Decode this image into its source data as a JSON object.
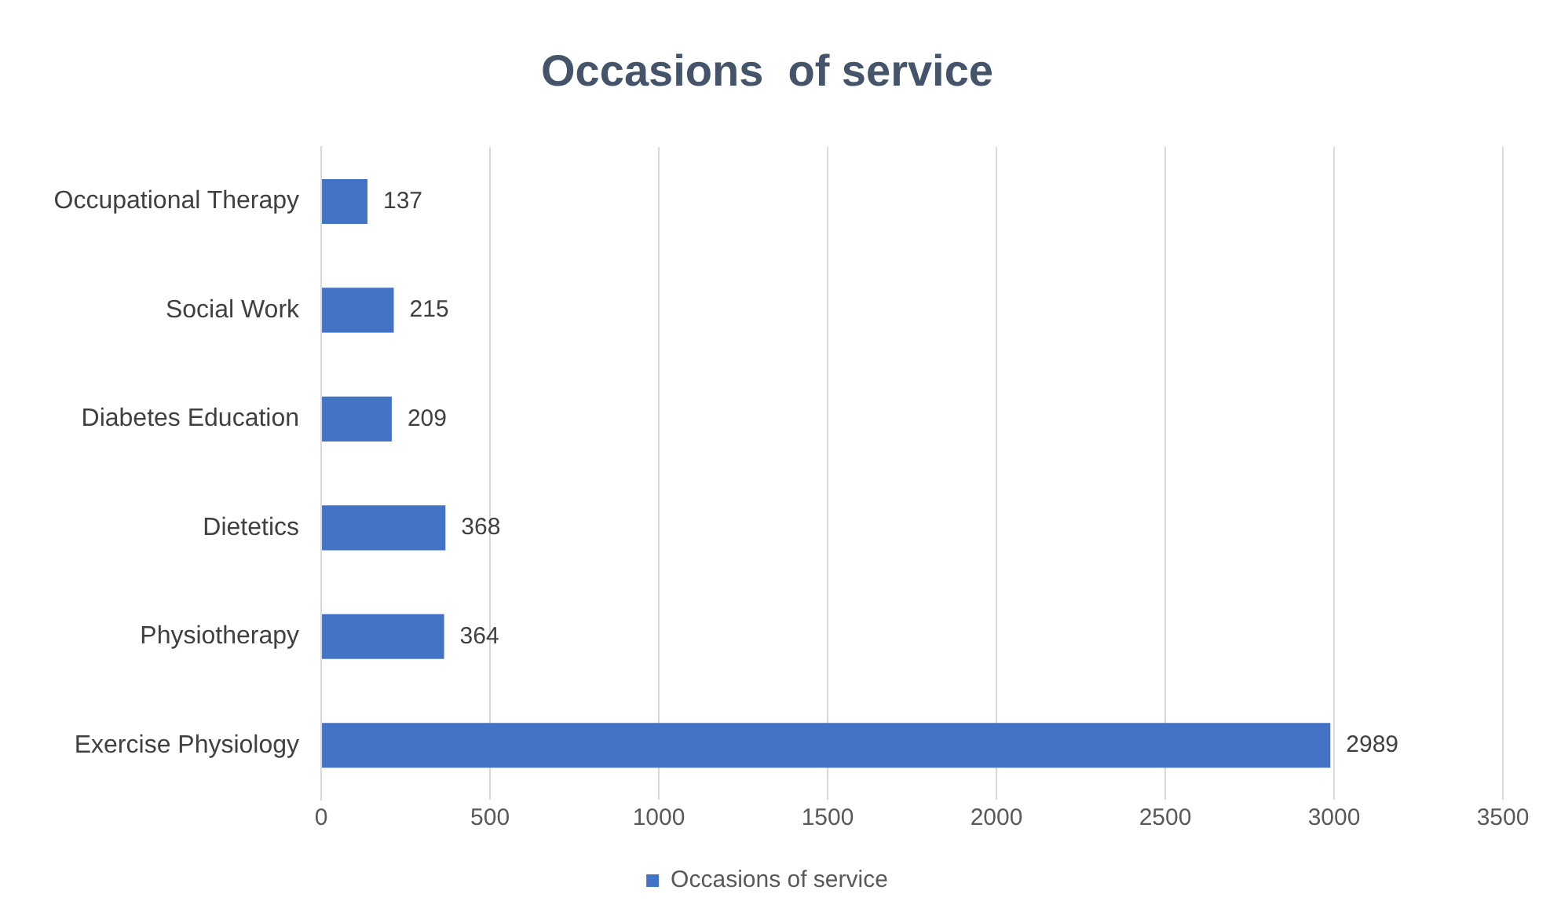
{
  "chart_data": {
    "type": "bar",
    "orientation": "horizontal",
    "title": "Occasions  of service",
    "categories": [
      "Occupational Therapy",
      "Social Work",
      "Diabetes Education",
      "Dietetics",
      "Physiotherapy",
      "Exercise Physiology"
    ],
    "series": [
      {
        "name": "Occasions of service",
        "color": "#4472c4",
        "values": [
          137,
          215,
          209,
          368,
          364,
          2989
        ]
      }
    ],
    "xlim": [
      0,
      3500
    ],
    "xticks": [
      0,
      500,
      1000,
      1500,
      2000,
      2500,
      3000,
      3500
    ],
    "grid": "x",
    "legend": "bottom",
    "data_labels": true
  }
}
